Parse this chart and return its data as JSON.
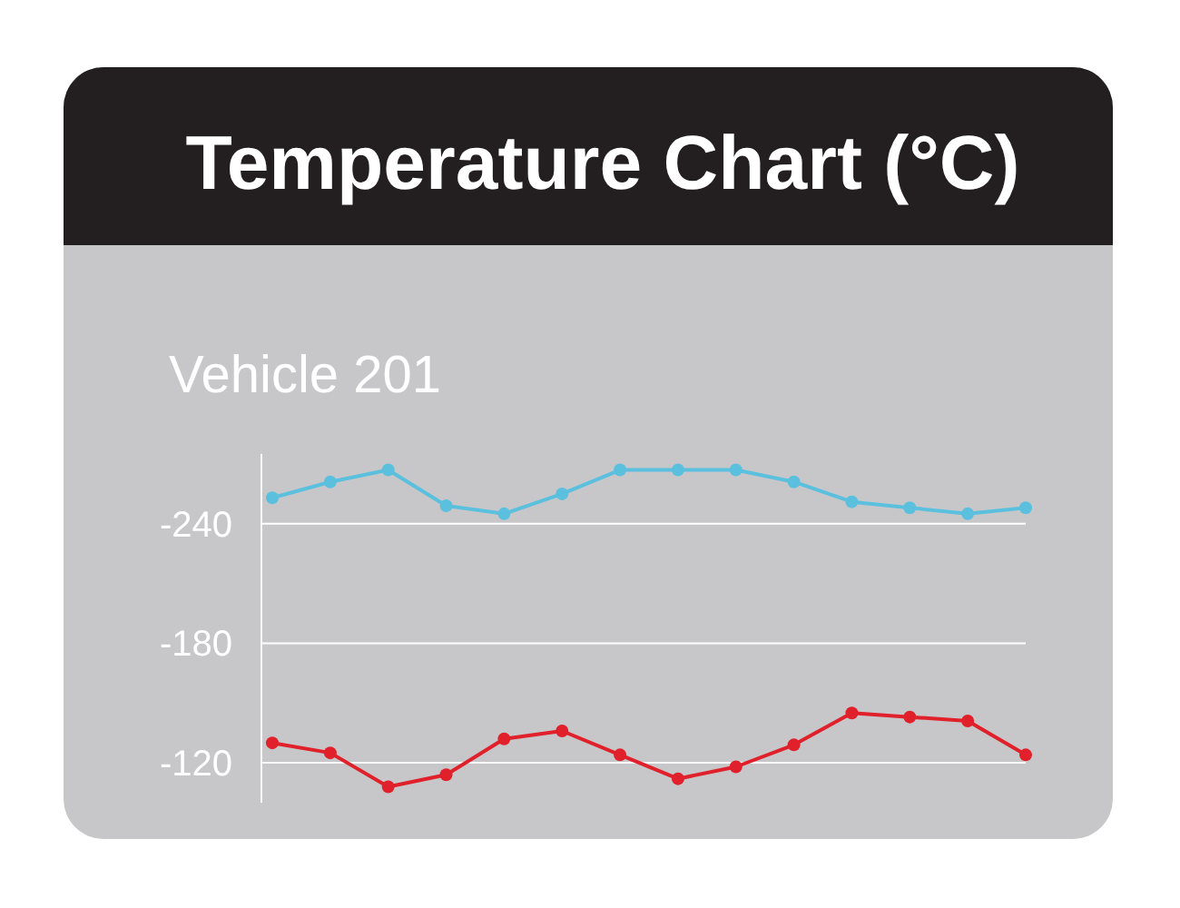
{
  "chart_data": {
    "type": "line",
    "title": "Temperature Chart (°C)",
    "subtitle": "Vehicle 201",
    "categories": [
      null,
      null,
      null,
      null,
      null,
      null,
      null,
      null,
      null,
      null,
      null,
      null,
      null,
      null
    ],
    "series": [
      {
        "color": "#5bc0de",
        "values": [
          -253,
          -261,
          -267,
          -249,
          -245,
          -255,
          -267,
          -267,
          -267,
          -261,
          -251,
          -248,
          -245,
          -248
        ]
      },
      {
        "color": "#e0202a",
        "values": [
          -130,
          -125,
          -108,
          -114,
          -132,
          -136,
          -124,
          -112,
          -118,
          -129,
          -145,
          -143,
          -141,
          -124
        ]
      }
    ],
    "ylim": [
      -100,
      -275
    ],
    "yticks": [
      -240,
      -180,
      -120
    ],
    "grid": "y",
    "tick_labels": "y",
    "marker": "circle",
    "line_style": "solid"
  }
}
